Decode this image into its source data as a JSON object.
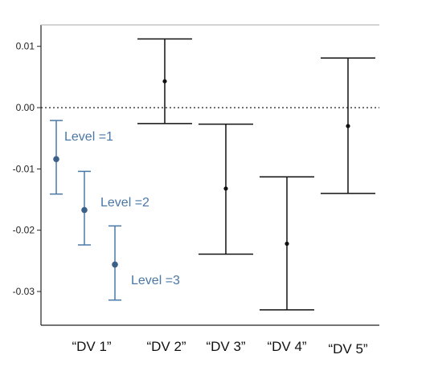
{
  "chart_data": {
    "type": "errorbar",
    "title": "",
    "xlabel": "",
    "ylabel": "",
    "ylim": [
      -0.0355,
      0.0135
    ],
    "yticks": [
      0.01,
      0.0,
      -0.01,
      -0.02,
      -0.03
    ],
    "ytick_labels": [
      "0.01",
      "0.00",
      "-0.01",
      "-0.02",
      "-0.03"
    ],
    "reference_line": {
      "y": 0.0,
      "style": "dotted"
    },
    "categories": [
      "“DV 1”",
      "“DV 2”",
      "“DV 3”",
      "“DV 4”",
      "“DV 5”"
    ],
    "points": [
      {
        "category": "“DV 1”",
        "subgroup": 0,
        "estimate": -0.0084,
        "lower": -0.0141,
        "upper": -0.0021,
        "color": "#4a78a6",
        "label": "Level =1"
      },
      {
        "category": "“DV 1”",
        "subgroup": 1,
        "estimate": -0.0167,
        "lower": -0.0224,
        "upper": -0.0104,
        "color": "#4a78a6",
        "label": "Level =2"
      },
      {
        "category": "“DV 1”",
        "subgroup": 2,
        "estimate": -0.0256,
        "lower": -0.0314,
        "upper": -0.0193,
        "color": "#4a78a6",
        "label": "Level =3"
      },
      {
        "category": "“DV 2”",
        "subgroup": null,
        "estimate": 0.0043,
        "lower": -0.0026,
        "upper": 0.0112,
        "color": "#111111"
      },
      {
        "category": "“DV 3”",
        "subgroup": null,
        "estimate": -0.0132,
        "lower": -0.0239,
        "upper": -0.0027,
        "color": "#111111"
      },
      {
        "category": "“DV 4”",
        "subgroup": null,
        "estimate": -0.0222,
        "lower": -0.033,
        "upper": -0.0113,
        "color": "#111111"
      },
      {
        "category": "“DV 5”",
        "subgroup": null,
        "estimate": -0.003,
        "lower": -0.014,
        "upper": 0.0081,
        "color": "#111111"
      }
    ],
    "grid": false,
    "legend": "none"
  }
}
